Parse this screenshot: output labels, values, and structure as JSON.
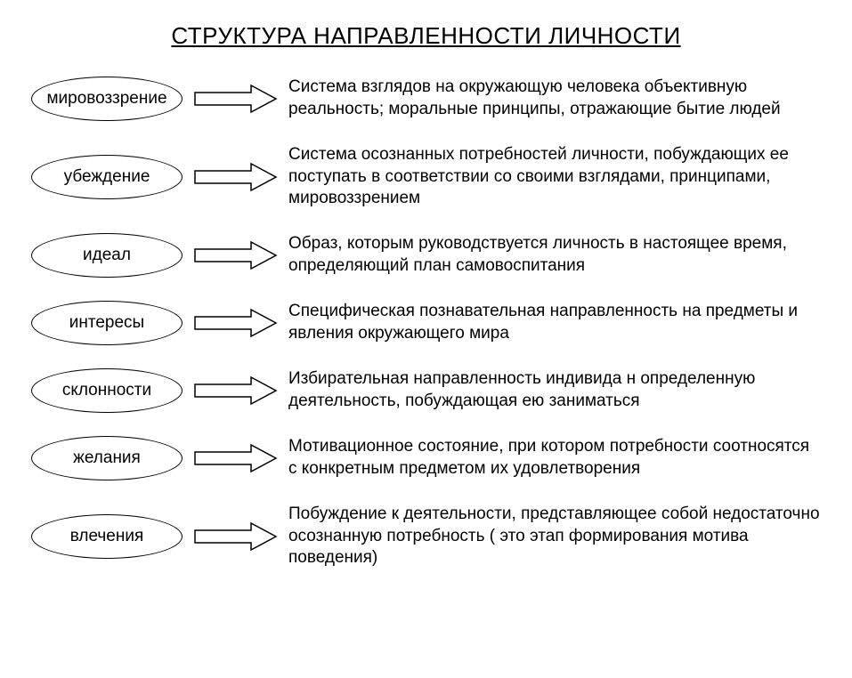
{
  "title": "СТРУКТУРА НАПРАВЛЕННОСТИ ЛИЧНОСТИ",
  "type": "diagram",
  "colors": {
    "background": "#ffffff",
    "stroke": "#000000",
    "text": "#000000"
  },
  "typography": {
    "title_fontsize": 26,
    "label_fontsize": 19,
    "description_fontsize": 19,
    "font_family": "Arial"
  },
  "layout": {
    "ellipse_width": 170,
    "ellipse_height": 50,
    "arrow_width": 95,
    "arrow_height": 34,
    "row_spacing": 26
  },
  "items": [
    {
      "label": "мировоззрение",
      "description": "Система взглядов на окружающую человека объективную реальность; моральные принципы, отражающие бытие людей"
    },
    {
      "label": "убеждение",
      "description": "Система осознанных потребностей личности, побуждающих ее поступать в соответствии со своими взглядами, принципами, мировоззрением"
    },
    {
      "label": "идеал",
      "description": "Образ, которым руководствуется личность в настоящее время, определяющий план самовоспитания"
    },
    {
      "label": "интересы",
      "description": "Специфическая познавательная направленность на предметы и явления окружающего мира"
    },
    {
      "label": "склонности",
      "description": "Избирательная направленность индивида н определенную деятельность, побуждающая ею заниматься"
    },
    {
      "label": "желания",
      "description": "Мотивационное состояние, при котором потребности соотносятся с конкретным предметом их удовлетворения"
    },
    {
      "label": "влечения",
      "description": "Побуждение к деятельности, представляющее собой недостаточно осознанную потребность ( это этап формирования мотива поведения)"
    }
  ]
}
